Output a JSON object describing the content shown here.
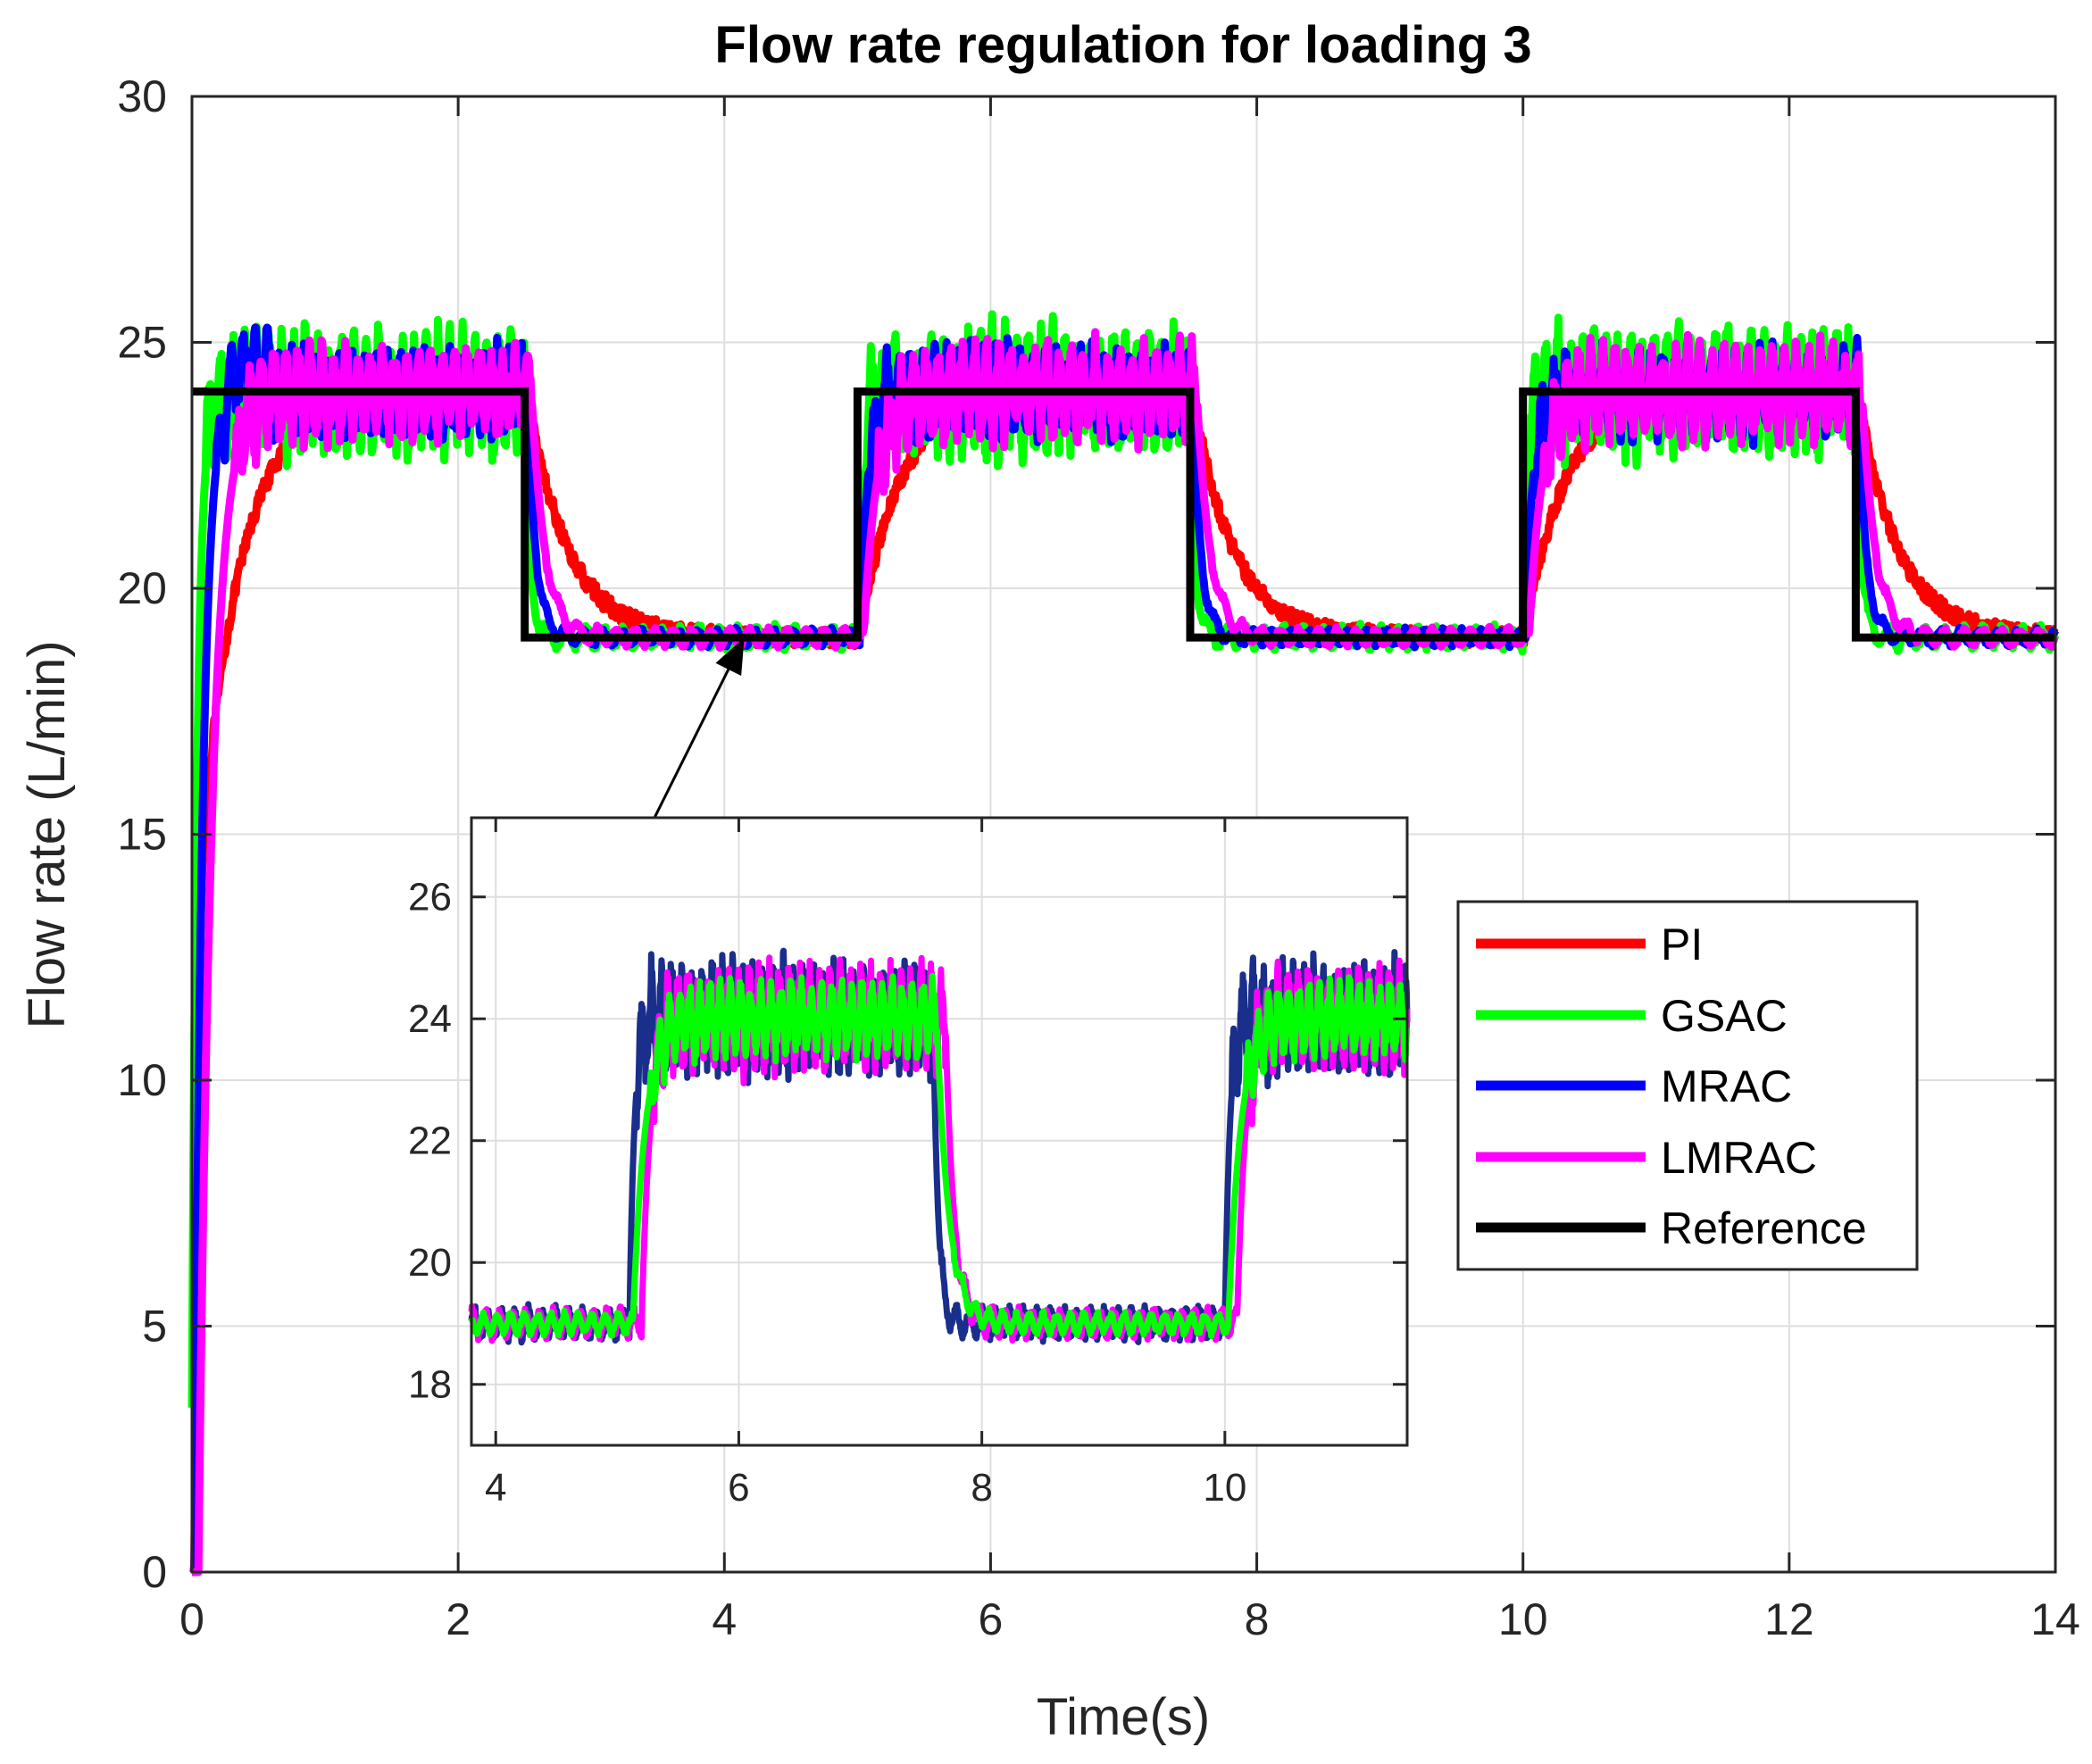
{
  "chart_data": {
    "type": "line",
    "title": "Flow rate regulation for loading 3",
    "xlabel": "Time(s)",
    "ylabel": "Flow rate (L/min)",
    "xlim": [
      0,
      14
    ],
    "ylim": [
      0,
      30
    ],
    "xticks": [
      0,
      2,
      4,
      6,
      8,
      10,
      12,
      14
    ],
    "yticks": [
      0,
      5,
      10,
      15,
      20,
      25,
      30
    ],
    "grid": true,
    "legend_position": "right-center",
    "series": [
      {
        "name": "PI",
        "color": "#ff0000",
        "model": "first-order",
        "tau": 0.3,
        "noise": 0.35,
        "delay": 0.02,
        "initial_hold": [
          0.12,
          16.5
        ]
      },
      {
        "name": "GSAC",
        "color": "#00ff00",
        "model": "oscillating",
        "tau": 0.04,
        "noise": 1.05,
        "delay": 0.0
      },
      {
        "name": "MRAC",
        "color": "#0000ff",
        "model": "oscillating",
        "tau": 0.06,
        "noise": 0.75,
        "delay": 0.02,
        "overshoot": 1.3
      },
      {
        "name": "LMRAC",
        "color": "#ff00ff",
        "model": "oscillating",
        "tau": 0.1,
        "noise": 0.8,
        "delay": 0.05
      },
      {
        "name": "Reference",
        "color": "#000000",
        "model": "step",
        "x": [
          0,
          2.5,
          2.5,
          5.0,
          5.0,
          7.5,
          7.5,
          10.0,
          10.0,
          12.5,
          12.5,
          14
        ],
        "y": [
          24,
          24,
          19,
          19,
          24,
          24,
          19,
          19,
          24,
          24,
          19,
          19
        ]
      }
    ],
    "inset": {
      "xlim": [
        3.8,
        11.5
      ],
      "ylim": [
        17,
        27.3
      ],
      "xticks": [
        4,
        6,
        8,
        10
      ],
      "yticks": [
        18,
        20,
        22,
        24,
        26
      ],
      "steps": [
        [
          3.8,
          19
        ],
        [
          5.1,
          24
        ],
        [
          7.6,
          19
        ],
        [
          10.0,
          24
        ],
        [
          11.5,
          24
        ]
      ],
      "series": [
        {
          "name": "MRAC",
          "color": "#1a2e8c",
          "noise": 0.75,
          "delay": 0.0
        },
        {
          "name": "LMRAC",
          "color": "#ff00ff",
          "noise": 0.7,
          "delay": 0.1
        },
        {
          "name": "GSAC",
          "color": "#00ff00",
          "noise": 0.5,
          "delay": 0.03
        }
      ]
    },
    "annotation": {
      "type": "arrow",
      "from_data": [
        3.45,
        15.2
      ],
      "to_data": [
        4.15,
        19.0
      ]
    }
  },
  "legend": {
    "entries": [
      {
        "name": "PI",
        "color": "#ff0000"
      },
      {
        "name": "GSAC",
        "color": "#00ff00"
      },
      {
        "name": "MRAC",
        "color": "#0000ff"
      },
      {
        "name": "LMRAC",
        "color": "#ff00ff"
      },
      {
        "name": "Reference",
        "color": "#000000"
      }
    ]
  }
}
